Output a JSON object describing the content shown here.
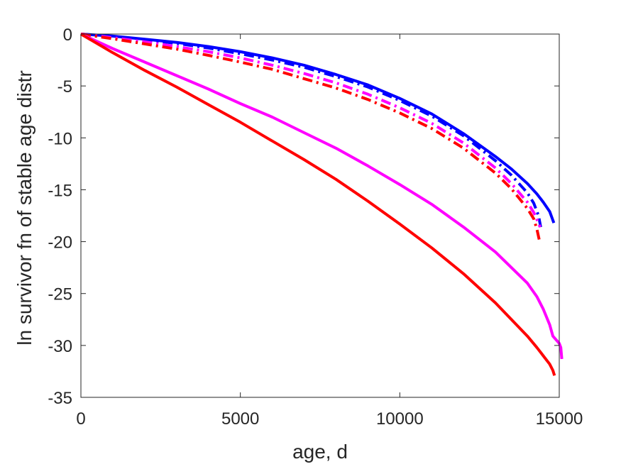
{
  "chart_data": {
    "type": "line",
    "title": "",
    "xlabel": "age, d",
    "ylabel": "ln survivor fn of stable age distr",
    "xlim": [
      0,
      15000
    ],
    "ylim": [
      -35,
      0
    ],
    "xticks": [
      0,
      5000,
      10000,
      15000
    ],
    "yticks": [
      0,
      -5,
      -10,
      -15,
      -20,
      -25,
      -30,
      -35
    ],
    "xtick_labels": [
      "0",
      "5000",
      "10000",
      "15000"
    ],
    "ytick_labels": [
      "0",
      "-5",
      "-10",
      "-15",
      "-20",
      "-25",
      "-30",
      "-35"
    ],
    "grid": false,
    "box": true,
    "series": [
      {
        "color": "#0000ff",
        "style": "solid",
        "x": [
          0,
          1000,
          2000,
          3000,
          4000,
          5000,
          6000,
          7000,
          8000,
          9000,
          10000,
          11000,
          12000,
          13000,
          13500,
          14000,
          14300,
          14500,
          14700,
          14830
        ],
        "y": [
          0,
          -0.2,
          -0.5,
          -0.8,
          -1.2,
          -1.7,
          -2.3,
          -3.0,
          -3.9,
          -4.9,
          -6.2,
          -7.7,
          -9.6,
          -11.8,
          -13.0,
          -14.4,
          -15.4,
          -16.2,
          -17.1,
          -18.2
        ]
      },
      {
        "color": "#0000ff",
        "style": "dashdot",
        "x": [
          0,
          1000,
          2000,
          3000,
          4000,
          5000,
          6000,
          7000,
          8000,
          9000,
          10000,
          11000,
          12000,
          13000,
          13500,
          14000,
          14200,
          14350,
          14420
        ],
        "y": [
          0,
          -0.25,
          -0.55,
          -0.9,
          -1.35,
          -1.9,
          -2.5,
          -3.2,
          -4.1,
          -5.1,
          -6.4,
          -7.9,
          -9.8,
          -12.2,
          -13.6,
          -15.3,
          -16.3,
          -17.5,
          -18.6
        ]
      },
      {
        "color": "#ff00ff",
        "style": "dashdot",
        "x": [
          0,
          1000,
          2000,
          3000,
          4000,
          5000,
          6000,
          7000,
          8000,
          9000,
          10000,
          11000,
          12000,
          13000,
          13500,
          14000,
          14200,
          14320,
          14400
        ],
        "y": [
          0,
          -0.35,
          -0.75,
          -1.2,
          -1.7,
          -2.3,
          -3.0,
          -3.8,
          -4.7,
          -5.8,
          -7.1,
          -8.6,
          -10.5,
          -12.9,
          -14.4,
          -16.2,
          -17.2,
          -18.0,
          -18.6
        ]
      },
      {
        "color": "#ff0000",
        "style": "dashdot",
        "x": [
          0,
          1000,
          2000,
          3000,
          4000,
          5000,
          6000,
          7000,
          8000,
          9000,
          10000,
          11000,
          12000,
          13000,
          13500,
          14000,
          14200,
          14300,
          14370
        ],
        "y": [
          0,
          -0.45,
          -0.95,
          -1.45,
          -2.05,
          -2.7,
          -3.4,
          -4.3,
          -5.2,
          -6.3,
          -7.6,
          -9.1,
          -11.0,
          -13.4,
          -14.9,
          -16.8,
          -17.8,
          -18.8,
          -19.8
        ]
      },
      {
        "color": "#ff00ff",
        "style": "solid",
        "x": [
          0,
          1000,
          2000,
          3000,
          4000,
          5000,
          6000,
          7000,
          8000,
          9000,
          10000,
          11000,
          12000,
          13000,
          14000,
          14300,
          14500,
          14700,
          14800,
          15000,
          15050,
          15080
        ],
        "y": [
          0,
          -1.4,
          -2.7,
          -4.0,
          -5.3,
          -6.7,
          -8.0,
          -9.5,
          -11.0,
          -12.7,
          -14.5,
          -16.4,
          -18.6,
          -21.0,
          -24.0,
          -25.3,
          -26.5,
          -28.0,
          -29.1,
          -29.8,
          -30.2,
          -31.3
        ]
      },
      {
        "color": "#ff0000",
        "style": "solid",
        "x": [
          0,
          1000,
          2000,
          3000,
          4000,
          5000,
          6000,
          7000,
          8000,
          9000,
          10000,
          11000,
          12000,
          13000,
          14000,
          14300,
          14500,
          14700,
          14800,
          14850
        ],
        "y": [
          0,
          -1.8,
          -3.5,
          -5.1,
          -6.8,
          -8.5,
          -10.3,
          -12.1,
          -14.0,
          -16.1,
          -18.3,
          -20.6,
          -23.1,
          -25.9,
          -29.1,
          -30.2,
          -31.0,
          -31.8,
          -32.4,
          -32.9
        ]
      }
    ]
  }
}
